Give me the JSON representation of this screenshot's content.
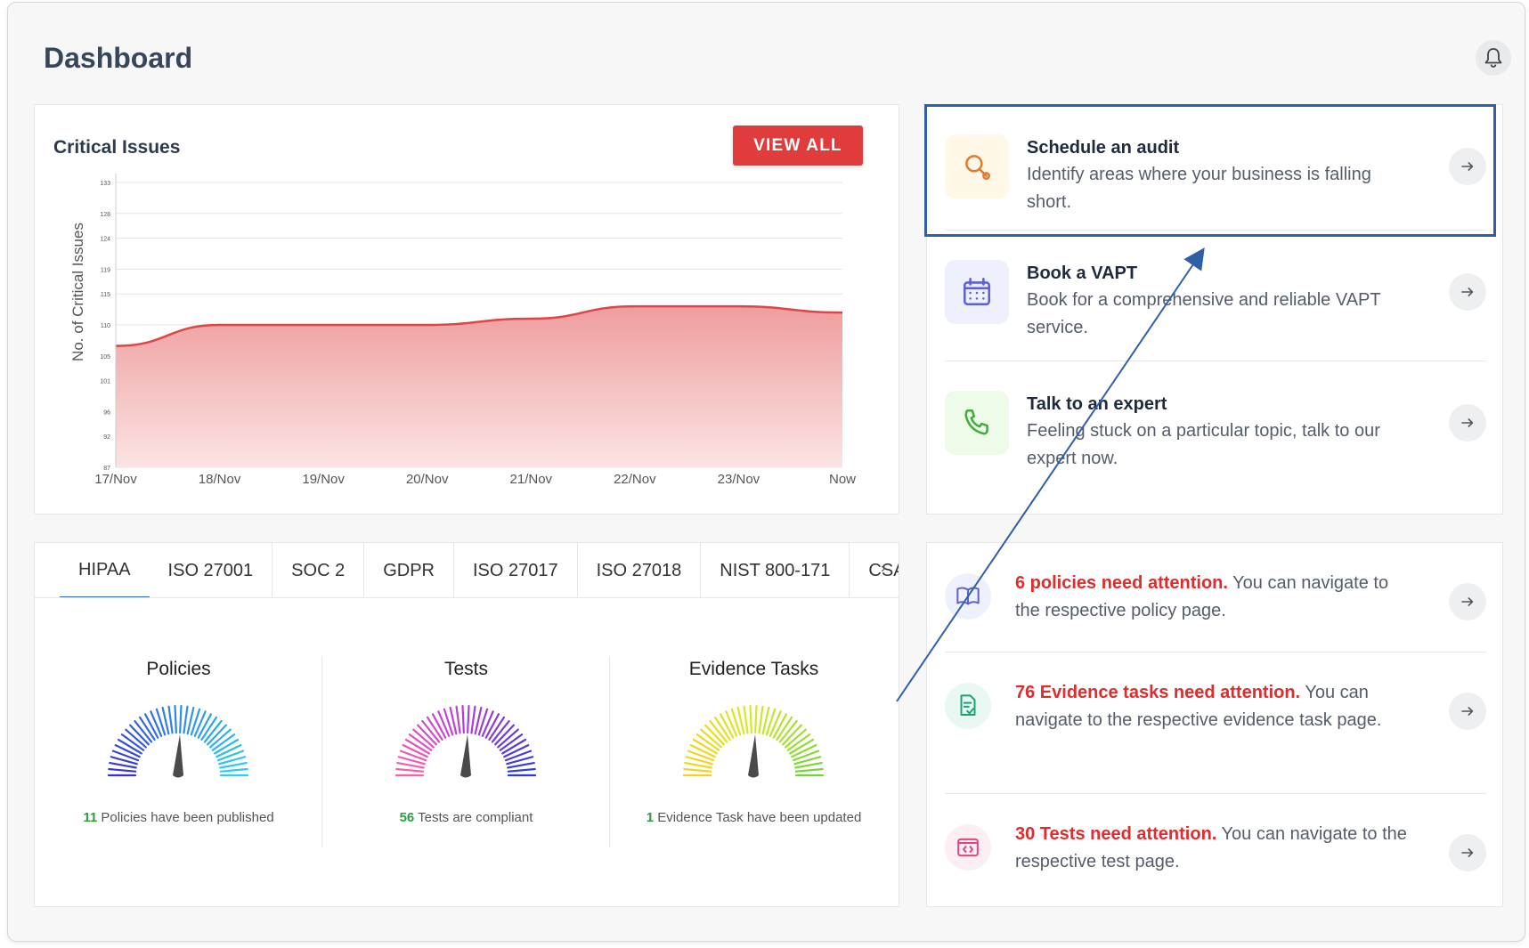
{
  "page": {
    "title": "Dashboard"
  },
  "chart_card": {
    "title": "Critical Issues",
    "view_all_label": "VIEW ALL"
  },
  "chart_data": {
    "type": "area",
    "title": "Critical Issues",
    "xlabel": "",
    "ylabel": "No. of Critical Issues",
    "x": [
      "17/Nov",
      "18/Nov",
      "19/Nov",
      "20/Nov",
      "21/Nov",
      "22/Nov",
      "23/Nov",
      "Now"
    ],
    "yticks": [
      87,
      92,
      96,
      101,
      105,
      110,
      115,
      119,
      124,
      128,
      133
    ],
    "ylim": [
      87,
      133
    ],
    "series": [
      {
        "values": [
          106.6,
          110,
          110,
          110,
          111,
          113,
          113,
          112
        ]
      }
    ],
    "grid": true,
    "colors": {
      "line": "#e04545",
      "fill_top": "#ef9d9d",
      "fill_bottom": "#fbe4e4"
    }
  },
  "frameworks": {
    "tabs": [
      "HIPAA",
      "ISO 27001",
      "SOC 2",
      "GDPR",
      "ISO 27017",
      "ISO 27018",
      "NIST 800-171",
      "CSA"
    ],
    "active_tab": "HIPAA",
    "scroll_arrow": "›",
    "gauges": [
      {
        "title": "Policies",
        "count": "11",
        "caption": "Policies have been published",
        "palette": [
          "#3c2fd0",
          "#2f8be6",
          "#2bd0f0"
        ]
      },
      {
        "title": "Tests",
        "count": "56",
        "caption": "Tests are compliant",
        "palette": [
          "#ff5fa8",
          "#b23ee0",
          "#2a3ad8"
        ]
      },
      {
        "title": "Evidence Tasks",
        "count": "1",
        "caption": "Evidence Task have been updated",
        "palette": [
          "#f5d020",
          "#d8e828",
          "#6fd43a"
        ]
      }
    ]
  },
  "actions": [
    {
      "title": "Schedule an audit",
      "desc": "Identify areas where your business is falling short.",
      "icon": "search-icon",
      "bg": "#fff8e8",
      "color": "#e07a2c"
    },
    {
      "title": "Book a VAPT",
      "desc": "Book for a comprehensive and reliable VAPT service.",
      "icon": "calendar-icon",
      "bg": "#eef0fd",
      "color": "#5b5fd9"
    },
    {
      "title": "Talk to an expert",
      "desc": "Feeling stuck on a particular topic, talk to our expert now.",
      "icon": "phone-icon",
      "bg": "#effbe9",
      "color": "#3fae3a"
    }
  ],
  "attention": [
    {
      "highlight": "6 policies need attention.",
      "rest": " You can navigate to the respective policy page.",
      "icon": "book-icon",
      "bg": "#eef1fb",
      "color": "#5b63c8"
    },
    {
      "highlight": "76 Evidence tasks need attention.",
      "rest": " You can navigate to the respective evidence task page.",
      "icon": "document-check-icon",
      "bg": "#e9f8f3",
      "color": "#1aa37a"
    },
    {
      "highlight": "30 Tests need attention.",
      "rest": " You can navigate to the respective test page.",
      "icon": "code-window-icon",
      "bg": "#fdeef4",
      "color": "#e0457f"
    }
  ]
}
